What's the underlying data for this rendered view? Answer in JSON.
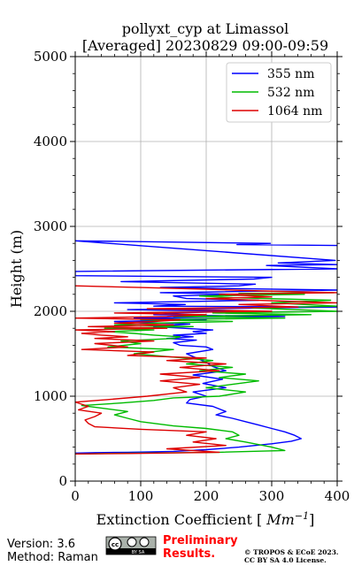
{
  "chart_data": {
    "type": "line",
    "title_line1": "pollyxt_cyp at Limassol",
    "title_line2": "[Averaged] 20230829 09:00-09:59",
    "xlabel": "Extinction Coefficient [Mm⁻¹]",
    "ylabel": "Height (m)",
    "xlim": [
      0,
      400
    ],
    "ylim": [
      0,
      5000
    ],
    "x_ticks": [
      0,
      100,
      200,
      300,
      400
    ],
    "y_ticks": [
      0,
      1000,
      2000,
      3000,
      4000,
      5000
    ],
    "grid": true,
    "legend_position": "top-right",
    "series": [
      {
        "name": "355 nm",
        "color": "#0000ff",
        "points": [
          [
            400,
            2775
          ],
          [
            247,
            2785
          ],
          [
            298,
            2800
          ],
          [
            0,
            2830
          ],
          [
            397,
            2600
          ],
          [
            310,
            2570
          ],
          [
            400,
            2550
          ],
          [
            292,
            2540
          ],
          [
            400,
            2500
          ],
          [
            0,
            2470
          ],
          [
            0,
            2420
          ],
          [
            300,
            2400
          ],
          [
            273,
            2380
          ],
          [
            70,
            2350
          ],
          [
            275,
            2320
          ],
          [
            250,
            2300
          ],
          [
            130,
            2280
          ],
          [
            400,
            2250
          ],
          [
            130,
            2220
          ],
          [
            250,
            2200
          ],
          [
            150,
            2180
          ],
          [
            170,
            2150
          ],
          [
            280,
            2130
          ],
          [
            60,
            2100
          ],
          [
            168,
            2080
          ],
          [
            120,
            2060
          ],
          [
            400,
            2050
          ],
          [
            80,
            2020
          ],
          [
            250,
            2000
          ],
          [
            150,
            1980
          ],
          [
            120,
            1960
          ],
          [
            320,
            1940
          ],
          [
            90,
            1920
          ],
          [
            200,
            1900
          ],
          [
            60,
            1880
          ],
          [
            175,
            1850
          ],
          [
            120,
            1820
          ],
          [
            210,
            1780
          ],
          [
            180,
            1760
          ],
          [
            200,
            1740
          ],
          [
            150,
            1720
          ],
          [
            180,
            1700
          ],
          [
            140,
            1680
          ],
          [
            185,
            1660
          ],
          [
            150,
            1630
          ],
          [
            160,
            1600
          ],
          [
            200,
            1580
          ],
          [
            210,
            1550
          ],
          [
            170,
            1500
          ],
          [
            185,
            1450
          ],
          [
            200,
            1400
          ],
          [
            210,
            1350
          ],
          [
            230,
            1300
          ],
          [
            180,
            1250
          ],
          [
            225,
            1200
          ],
          [
            195,
            1150
          ],
          [
            230,
            1100
          ],
          [
            180,
            1050
          ],
          [
            200,
            1000
          ],
          [
            175,
            960
          ],
          [
            170,
            920
          ],
          [
            210,
            880
          ],
          [
            230,
            820
          ],
          [
            215,
            780
          ],
          [
            240,
            740
          ],
          [
            260,
            700
          ],
          [
            280,
            660
          ],
          [
            300,
            620
          ],
          [
            320,
            580
          ],
          [
            335,
            540
          ],
          [
            345,
            500
          ],
          [
            330,
            470
          ],
          [
            300,
            440
          ],
          [
            250,
            400
          ],
          [
            200,
            370
          ],
          [
            150,
            350
          ],
          [
            80,
            340
          ],
          [
            30,
            335
          ],
          [
            0,
            330
          ]
        ]
      },
      {
        "name": "532 nm",
        "color": "#00bb00",
        "points": [
          [
            395,
            2220
          ],
          [
            250,
            2210
          ],
          [
            350,
            2200
          ],
          [
            190,
            2180
          ],
          [
            240,
            2160
          ],
          [
            390,
            2130
          ],
          [
            300,
            2100
          ],
          [
            400,
            2060
          ],
          [
            270,
            2040
          ],
          [
            400,
            2000
          ],
          [
            210,
            1980
          ],
          [
            360,
            1960
          ],
          [
            150,
            1940
          ],
          [
            320,
            1920
          ],
          [
            100,
            1900
          ],
          [
            240,
            1880
          ],
          [
            120,
            1860
          ],
          [
            60,
            1840
          ],
          [
            180,
            1820
          ],
          [
            45,
            1800
          ],
          [
            120,
            1780
          ],
          [
            50,
            1760
          ],
          [
            90,
            1740
          ],
          [
            120,
            1720
          ],
          [
            160,
            1700
          ],
          [
            150,
            1680
          ],
          [
            70,
            1650
          ],
          [
            100,
            1620
          ],
          [
            50,
            1580
          ],
          [
            150,
            1550
          ],
          [
            90,
            1500
          ],
          [
            150,
            1460
          ],
          [
            210,
            1420
          ],
          [
            170,
            1380
          ],
          [
            240,
            1340
          ],
          [
            190,
            1300
          ],
          [
            260,
            1260
          ],
          [
            220,
            1220
          ],
          [
            280,
            1180
          ],
          [
            240,
            1140
          ],
          [
            200,
            1100
          ],
          [
            260,
            1050
          ],
          [
            220,
            1000
          ],
          [
            150,
            980
          ],
          [
            120,
            950
          ],
          [
            70,
            920
          ],
          [
            10,
            890
          ],
          [
            40,
            860
          ],
          [
            80,
            820
          ],
          [
            60,
            780
          ],
          [
            80,
            740
          ],
          [
            100,
            700
          ],
          [
            150,
            650
          ],
          [
            200,
            620
          ],
          [
            240,
            580
          ],
          [
            250,
            540
          ],
          [
            230,
            500
          ],
          [
            260,
            460
          ],
          [
            300,
            400
          ],
          [
            320,
            360
          ],
          [
            220,
            340
          ],
          [
            100,
            330
          ],
          [
            0,
            320
          ]
        ]
      },
      {
        "name": "1064 nm",
        "color": "#dd0000",
        "points": [
          [
            0,
            2300
          ],
          [
            100,
            2280
          ],
          [
            200,
            2260
          ],
          [
            285,
            2240
          ],
          [
            400,
            2220
          ],
          [
            220,
            2200
          ],
          [
            300,
            2170
          ],
          [
            200,
            2150
          ],
          [
            400,
            2100
          ],
          [
            250,
            2080
          ],
          [
            340,
            2050
          ],
          [
            110,
            2030
          ],
          [
            300,
            2000
          ],
          [
            60,
            1980
          ],
          [
            200,
            1960
          ],
          [
            140,
            1940
          ],
          [
            0,
            1920
          ],
          [
            160,
            1900
          ],
          [
            120,
            1880
          ],
          [
            60,
            1860
          ],
          [
            150,
            1840
          ],
          [
            20,
            1820
          ],
          [
            140,
            1800
          ],
          [
            0,
            1780
          ],
          [
            60,
            1760
          ],
          [
            10,
            1740
          ],
          [
            40,
            1720
          ],
          [
            80,
            1700
          ],
          [
            30,
            1680
          ],
          [
            120,
            1650
          ],
          [
            30,
            1620
          ],
          [
            80,
            1580
          ],
          [
            10,
            1550
          ],
          [
            120,
            1520
          ],
          [
            80,
            1480
          ],
          [
            200,
            1450
          ],
          [
            140,
            1420
          ],
          [
            230,
            1380
          ],
          [
            160,
            1340
          ],
          [
            220,
            1300
          ],
          [
            130,
            1260
          ],
          [
            190,
            1220
          ],
          [
            130,
            1180
          ],
          [
            190,
            1140
          ],
          [
            150,
            1100
          ],
          [
            170,
            1050
          ],
          [
            110,
            1000
          ],
          [
            50,
            960
          ],
          [
            0,
            930
          ],
          [
            20,
            880
          ],
          [
            5,
            840
          ],
          [
            40,
            800
          ],
          [
            30,
            760
          ],
          [
            15,
            720
          ],
          [
            20,
            680
          ],
          [
            30,
            640
          ],
          [
            100,
            610
          ],
          [
            200,
            580
          ],
          [
            170,
            540
          ],
          [
            215,
            500
          ],
          [
            180,
            460
          ],
          [
            230,
            420
          ],
          [
            140,
            380
          ],
          [
            220,
            340
          ],
          [
            80,
            325
          ],
          [
            0,
            320
          ]
        ]
      }
    ]
  },
  "footer": {
    "version": "Version: 3.6",
    "method": "Method: Raman",
    "preliminary_line1": "Preliminary",
    "preliminary_line2": "Results.",
    "copyright_line1": "© TROPOS & ECoE 2023.",
    "copyright_line2": "CC BY SA 4.0 License.",
    "license_logo_text": "cc",
    "license_badge": "BY SA",
    "preliminary_color": "#ff0000"
  }
}
